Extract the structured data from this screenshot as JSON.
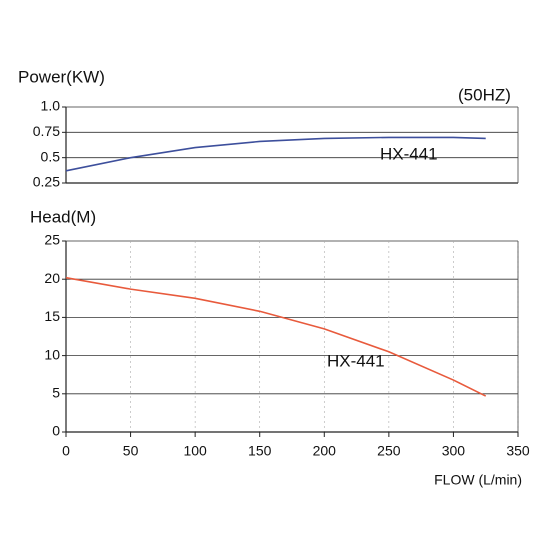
{
  "chart_data": [
    {
      "type": "line",
      "title": "Power(KW)",
      "subtitle": "(50HZ)",
      "x": [
        0,
        50,
        100,
        150,
        200,
        250,
        300,
        325
      ],
      "series": [
        {
          "name": "HX-441",
          "color": "#3d4f9c",
          "values": [
            0.37,
            0.5,
            0.6,
            0.66,
            0.69,
            0.7,
            0.7,
            0.69
          ]
        }
      ],
      "xlim": [
        0,
        350
      ],
      "ylim": [
        0.25,
        1
      ],
      "yticks": [
        {
          "value": 1,
          "label": "1.0"
        },
        0.75,
        0.5,
        0.25
      ],
      "grid": true
    },
    {
      "type": "line",
      "title": "Head(M)",
      "xlabel": "FLOW (L/min)",
      "x": [
        0,
        50,
        100,
        150,
        200,
        250,
        300,
        325
      ],
      "series": [
        {
          "name": "HX-441",
          "color": "#e85a3c",
          "values": [
            20.2,
            18.7,
            17.5,
            15.8,
            13.5,
            10.5,
            6.8,
            4.7
          ]
        }
      ],
      "xlim": [
        0,
        350
      ],
      "xticks": [
        0,
        50,
        100,
        150,
        200,
        250,
        300,
        350
      ],
      "ylim": [
        0,
        25
      ],
      "yticks": [
        0,
        5,
        10,
        15,
        20,
        25
      ],
      "grid": true
    }
  ]
}
